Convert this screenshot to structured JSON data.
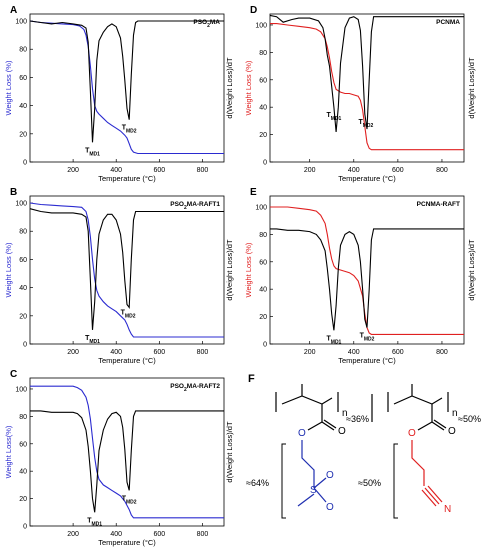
{
  "chart_data": [
    {
      "type": "line",
      "panel_letter": "A",
      "title": "PSO2MA",
      "title_main": "PSO",
      "title_sub": "2",
      "title_tail": "MA",
      "xlabel": "Temperature (°C)",
      "ylabel_left": "Weight Loss (%)",
      "ylabel_right": "d(Weight Loss)/dT",
      "xlim": [
        0,
        900
      ],
      "ylim": [
        0,
        105
      ],
      "xticks": [
        200,
        400,
        600,
        800
      ],
      "yticks": [
        0,
        20,
        40,
        60,
        80,
        100
      ],
      "weight_color": "#2b2bd0",
      "deriv_color": "#000000",
      "annotations": [
        {
          "text": "T",
          "sub": "MD1",
          "x": 290
        },
        {
          "text": "T",
          "sub": "MD2",
          "x": 460
        }
      ],
      "series": [
        {
          "role": "weight",
          "x": [
            0,
            50,
            100,
            150,
            200,
            230,
            250,
            260,
            270,
            280,
            290,
            300,
            310,
            320,
            340,
            360,
            380,
            400,
            420,
            440,
            450,
            460,
            470,
            480,
            500,
            550,
            600,
            700,
            800,
            900
          ],
          "y": [
            100,
            99,
            98.5,
            98,
            97.5,
            96.5,
            94,
            90,
            82,
            68,
            52,
            40,
            36,
            34,
            31,
            28,
            26,
            24,
            22,
            19,
            17,
            13,
            9,
            7,
            6,
            6,
            6,
            6,
            6,
            6
          ]
        },
        {
          "role": "derivative",
          "x": [
            0,
            50,
            100,
            150,
            200,
            240,
            260,
            270,
            280,
            290,
            300,
            310,
            320,
            340,
            360,
            380,
            400,
            420,
            430,
            440,
            450,
            460,
            470,
            480,
            490,
            500,
            550,
            600,
            700,
            800,
            900
          ],
          "y": [
            100,
            99,
            98,
            99,
            98,
            97,
            95,
            85,
            50,
            14,
            38,
            72,
            86,
            92,
            96,
            98,
            96,
            88,
            75,
            58,
            38,
            30,
            62,
            90,
            99,
            100,
            100,
            100,
            100,
            100,
            100
          ]
        }
      ]
    },
    {
      "type": "line",
      "panel_letter": "B",
      "title": "PSO2MA-RAFT1",
      "title_main": "PSO",
      "title_sub": "2",
      "title_tail": "MA-RAFT1",
      "xlabel": "Temperature (°C)",
      "ylabel_left": "Weight Loss (%)",
      "ylabel_right": "d(Weight Loss)/dT",
      "xlim": [
        0,
        900
      ],
      "ylim": [
        0,
        105
      ],
      "xticks": [
        200,
        400,
        600,
        800
      ],
      "yticks": [
        0,
        20,
        40,
        60,
        80,
        100
      ],
      "weight_color": "#2b2bd0",
      "deriv_color": "#000000",
      "annotations": [
        {
          "text": "T",
          "sub": "MD1",
          "x": 290
        },
        {
          "text": "T",
          "sub": "MD2",
          "x": 455
        }
      ],
      "series": [
        {
          "role": "weight",
          "x": [
            0,
            50,
            100,
            150,
            200,
            240,
            260,
            270,
            280,
            290,
            300,
            310,
            320,
            340,
            360,
            380,
            400,
            420,
            440,
            450,
            460,
            470,
            480,
            500,
            550,
            600,
            700,
            800,
            900
          ],
          "y": [
            100,
            99,
            98.5,
            98,
            97.5,
            97,
            94,
            88,
            76,
            60,
            46,
            38,
            34,
            30,
            27,
            25,
            23,
            20,
            17,
            14,
            10,
            7,
            5,
            5,
            5,
            5,
            5,
            5,
            5
          ]
        },
        {
          "role": "derivative",
          "x": [
            0,
            50,
            100,
            150,
            200,
            240,
            260,
            270,
            280,
            290,
            300,
            310,
            320,
            340,
            360,
            380,
            400,
            420,
            430,
            440,
            450,
            460,
            470,
            480,
            490,
            500,
            550,
            600,
            700,
            800,
            900
          ],
          "y": [
            96,
            94,
            93,
            93,
            93,
            92,
            90,
            80,
            45,
            10,
            30,
            60,
            78,
            88,
            92,
            92,
            88,
            78,
            65,
            45,
            28,
            26,
            60,
            88,
            94,
            94,
            94,
            94,
            94,
            94,
            94
          ]
        }
      ]
    },
    {
      "type": "line",
      "panel_letter": "C",
      "title": "PSO2MA-RAFT2",
      "title_main": "PSO",
      "title_sub": "2",
      "title_tail": "MA-RAFT2",
      "xlabel": "Temperature (°C)",
      "ylabel_left": "Weight Loss(%)",
      "ylabel_right": "d(Weight Loss)/dT",
      "xlim": [
        0,
        900
      ],
      "ylim": [
        0,
        108
      ],
      "xticks": [
        200,
        400,
        600,
        800
      ],
      "yticks": [
        0,
        20,
        40,
        60,
        80,
        100
      ],
      "weight_color": "#2b2bd0",
      "deriv_color": "#000000",
      "annotations": [
        {
          "text": "T",
          "sub": "MD1",
          "x": 300
        },
        {
          "text": "T",
          "sub": "MD2",
          "x": 460
        }
      ],
      "series": [
        {
          "role": "weight",
          "x": [
            0,
            50,
            100,
            150,
            200,
            220,
            240,
            260,
            270,
            280,
            290,
            300,
            310,
            320,
            340,
            360,
            380,
            400,
            420,
            440,
            460,
            470,
            480,
            500,
            550,
            600,
            700,
            800,
            900
          ],
          "y": [
            102,
            102,
            102,
            102,
            102,
            101,
            99,
            94,
            88,
            78,
            64,
            50,
            40,
            34,
            30,
            28,
            26,
            24,
            22,
            18,
            12,
            8,
            6,
            6,
            6,
            6,
            6,
            6,
            6
          ]
        },
        {
          "role": "derivative",
          "x": [
            0,
            50,
            100,
            150,
            200,
            220,
            240,
            260,
            270,
            280,
            290,
            300,
            310,
            320,
            340,
            360,
            380,
            400,
            420,
            430,
            440,
            450,
            460,
            470,
            480,
            490,
            500,
            550,
            600,
            700,
            800,
            900
          ],
          "y": [
            84,
            84,
            83,
            83,
            83,
            82,
            79,
            70,
            58,
            40,
            20,
            10,
            30,
            55,
            70,
            78,
            82,
            83,
            80,
            72,
            56,
            32,
            26,
            55,
            80,
            84,
            84,
            84,
            84,
            84,
            84,
            84
          ]
        }
      ]
    },
    {
      "type": "line",
      "panel_letter": "D",
      "title": "PCNMA",
      "title_main": "PCNMA",
      "title_sub": "",
      "title_tail": "",
      "xlabel": "Temperature (°C)",
      "ylabel_left": "Weight Loss (%)",
      "ylabel_right": "d(Weight Loss)/dT",
      "xlim": [
        20,
        900
      ],
      "ylim": [
        0,
        108
      ],
      "xticks": [
        200,
        400,
        600,
        800
      ],
      "yticks": [
        0,
        20,
        40,
        60,
        80,
        100
      ],
      "weight_color": "#e02020",
      "deriv_color": "#000000",
      "annotations": [
        {
          "text": "T",
          "sub": "MD1",
          "x": 310
        },
        {
          "text": "T",
          "sub": "MD2",
          "x": 455
        }
      ],
      "series": [
        {
          "role": "weight",
          "x": [
            20,
            50,
            100,
            150,
            200,
            230,
            250,
            270,
            280,
            290,
            300,
            310,
            320,
            340,
            360,
            380,
            400,
            420,
            430,
            440,
            450,
            460,
            470,
            480,
            500,
            550,
            600,
            700,
            800,
            900
          ],
          "y": [
            101,
            101,
            100,
            99,
            98,
            97,
            95,
            90,
            84,
            76,
            66,
            58,
            53,
            51,
            50,
            50,
            49,
            48,
            45,
            38,
            26,
            14,
            10,
            9,
            9,
            9,
            9,
            9,
            9,
            9
          ]
        },
        {
          "role": "derivative",
          "x": [
            20,
            50,
            80,
            120,
            150,
            200,
            240,
            260,
            270,
            280,
            290,
            300,
            310,
            320,
            330,
            340,
            360,
            380,
            400,
            420,
            430,
            440,
            450,
            460,
            470,
            480,
            490,
            500,
            550,
            600,
            700,
            800,
            900
          ],
          "y": [
            107,
            106,
            102,
            104,
            105,
            105,
            103,
            98,
            90,
            78,
            70,
            55,
            40,
            22,
            40,
            72,
            98,
            105,
            106,
            104,
            96,
            70,
            35,
            24,
            60,
            95,
            106,
            106,
            106,
            106,
            106,
            106,
            106
          ]
        }
      ]
    },
    {
      "type": "line",
      "panel_letter": "E",
      "title": "PCNMA-RAFT",
      "title_main": "PCNMA-RAFT",
      "title_sub": "",
      "title_tail": "",
      "xlabel": "Temperature (°C)",
      "ylabel_left": "Weight Loss (%)",
      "ylabel_right": "d(Weight Loss)/dT",
      "xlim": [
        20,
        900
      ],
      "ylim": [
        0,
        108
      ],
      "xticks": [
        200,
        400,
        600,
        800
      ],
      "yticks": [
        0,
        20,
        40,
        60,
        80,
        100
      ],
      "weight_color": "#e02020",
      "deriv_color": "#000000",
      "annotations": [
        {
          "text": "T",
          "sub": "MD1",
          "x": 310
        },
        {
          "text": "T",
          "sub": "MD2",
          "x": 460
        }
      ],
      "series": [
        {
          "role": "weight",
          "x": [
            20,
            50,
            100,
            150,
            200,
            230,
            250,
            270,
            280,
            290,
            300,
            310,
            320,
            340,
            360,
            380,
            400,
            420,
            440,
            450,
            460,
            470,
            480,
            500,
            550,
            600,
            700,
            800,
            900
          ],
          "y": [
            100,
            100,
            100,
            99,
            98,
            97,
            94,
            88,
            80,
            70,
            62,
            57,
            55,
            54,
            53,
            52,
            50,
            46,
            35,
            22,
            12,
            8,
            7,
            7,
            7,
            7,
            7,
            7,
            7
          ]
        },
        {
          "role": "derivative",
          "x": [
            20,
            50,
            100,
            150,
            200,
            230,
            250,
            270,
            280,
            290,
            300,
            310,
            320,
            330,
            340,
            360,
            380,
            400,
            420,
            430,
            440,
            450,
            460,
            470,
            480,
            490,
            500,
            550,
            600,
            700,
            800,
            900
          ],
          "y": [
            84,
            84,
            83,
            83,
            82,
            80,
            76,
            68,
            55,
            40,
            22,
            10,
            28,
            55,
            72,
            80,
            82,
            80,
            72,
            60,
            40,
            18,
            12,
            40,
            76,
            84,
            84,
            84,
            84,
            84,
            84,
            84
          ]
        }
      ]
    }
  ],
  "panel_f": {
    "letter": "F",
    "left_fraction": "≈36%",
    "left_side_fraction": "≈64%",
    "right_fraction": "≈50%",
    "right_side_fraction": "≈50%",
    "subscript_left": "n",
    "subscript_right": "n",
    "atom_O": "O",
    "atom_S": "S",
    "atom_N": "N",
    "left_color": "#1f2fb0",
    "right_color": "#e02020"
  }
}
